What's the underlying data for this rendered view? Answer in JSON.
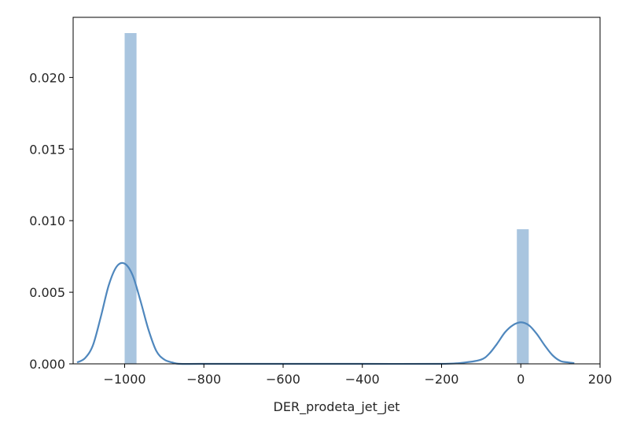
{
  "chart_data": {
    "type": "histogram",
    "xlabel": "DER_prodeta_jet_jet",
    "ylabel": "",
    "title": "",
    "xlim": [
      -1130,
      200
    ],
    "ylim": [
      0,
      0.0242
    ],
    "x_ticks": [
      -1000,
      -800,
      -600,
      -400,
      -200,
      0,
      200
    ],
    "x_tick_labels": [
      "−1000",
      "−800",
      "−600",
      "−400",
      "−200",
      "0",
      "200"
    ],
    "y_ticks": [
      0.0,
      0.005,
      0.01,
      0.015,
      0.02
    ],
    "y_tick_labels": [
      "0.000",
      "0.005",
      "0.010",
      "0.015",
      "0.020"
    ],
    "grid": false,
    "bars": [
      {
        "x0": -1000,
        "x1": -970,
        "value": 0.0231
      },
      {
        "x0": -10,
        "x1": 20,
        "value": 0.0094
      }
    ],
    "kde": {
      "x": [
        -1120,
        -1100,
        -1080,
        -1060,
        -1040,
        -1020,
        -1000,
        -980,
        -960,
        -940,
        -920,
        -900,
        -880,
        -860,
        -800,
        -600,
        -400,
        -200,
        -140,
        -100,
        -80,
        -60,
        -40,
        -20,
        0,
        20,
        40,
        60,
        80,
        100,
        120,
        135
      ],
      "y": [
        0.0001,
        0.0004,
        0.0013,
        0.0033,
        0.0055,
        0.0068,
        0.007,
        0.0062,
        0.0044,
        0.0024,
        0.0009,
        0.0003,
        0.0001,
        0.0,
        0.0,
        0.0,
        0.0,
        0.0,
        0.0001,
        0.0003,
        0.0007,
        0.0014,
        0.0022,
        0.0027,
        0.0029,
        0.0027,
        0.0021,
        0.0013,
        0.0006,
        0.0002,
        0.0001,
        5e-05
      ]
    },
    "colors": {
      "bar": "#a9c5df",
      "line": "#4f87bd"
    }
  }
}
